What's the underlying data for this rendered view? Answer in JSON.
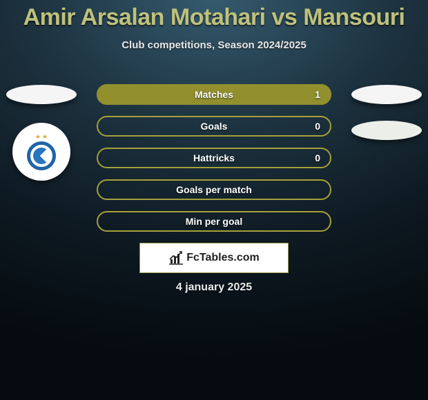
{
  "header": {
    "title": "Amir Arsalan Motahari vs Mansouri",
    "subtitle": "Club competitions, Season 2024/2025"
  },
  "avatars": {
    "left_player_color": "#f5f5f5",
    "left_club_color": "#ffffff",
    "right_player_color": "#f5f5f5",
    "right_club_color": "#eceee9",
    "club_ring_color": "#1f64a8",
    "star_color": "#d8a83a"
  },
  "bars": {
    "border_color": "#a6a03b",
    "fill_color": "#92902e",
    "rows": [
      {
        "label": "Matches",
        "left": "",
        "right": "1",
        "fill_side": "right",
        "fill_pct": 100
      },
      {
        "label": "Goals",
        "left": "",
        "right": "0",
        "fill_side": "none",
        "fill_pct": 0
      },
      {
        "label": "Hattricks",
        "left": "",
        "right": "0",
        "fill_side": "none",
        "fill_pct": 0
      },
      {
        "label": "Goals per match",
        "left": "",
        "right": "",
        "fill_side": "none",
        "fill_pct": 0
      },
      {
        "label": "Min per goal",
        "left": "",
        "right": "",
        "fill_side": "none",
        "fill_pct": 0
      }
    ]
  },
  "brand": {
    "text": "FcTables.com",
    "box_border": "#9a9a4a",
    "icon_color": "#222222"
  },
  "footer": {
    "date": "4 january 2025"
  },
  "colors": {
    "title_color": "#bfc17b",
    "text_color": "#ffffff"
  }
}
